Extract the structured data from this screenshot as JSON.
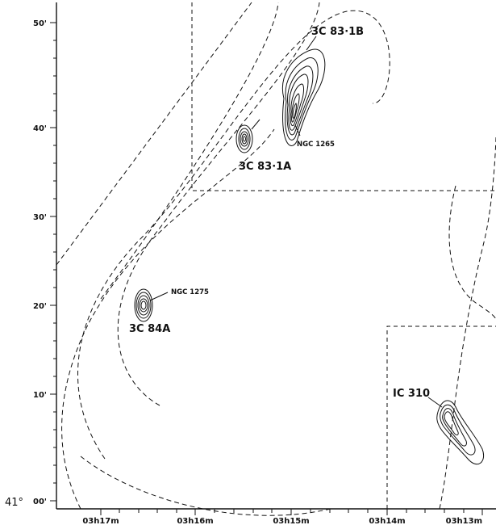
{
  "chart_data": {
    "type": "contour",
    "x_ticks": [
      {
        "label": "03h17m",
        "h": "03",
        "m": "17"
      },
      {
        "label": "03h16m",
        "h": "03",
        "m": "16"
      },
      {
        "label": "03h15m",
        "h": "03",
        "m": "15"
      },
      {
        "label": "03h14m",
        "h": "03",
        "m": "14"
      },
      {
        "label": "03h13m",
        "h": "03",
        "m": "13"
      }
    ],
    "y_ticks": [
      "00'",
      "10'",
      "20'",
      "30'",
      "40'",
      "50'"
    ],
    "dec_degree_label": "41°",
    "sources": [
      {
        "label": "3C 83·1B",
        "kind": "radio-source"
      },
      {
        "label": "3C 83·1A",
        "kind": "radio-source"
      },
      {
        "label": "3C 84A",
        "kind": "radio-source"
      },
      {
        "label": "IC 310",
        "kind": "radio-source"
      }
    ],
    "galaxies": [
      "NGC 1265",
      "NGC 1275"
    ],
    "colors": {
      "ink": "#111111",
      "background": "#ffffff"
    }
  }
}
